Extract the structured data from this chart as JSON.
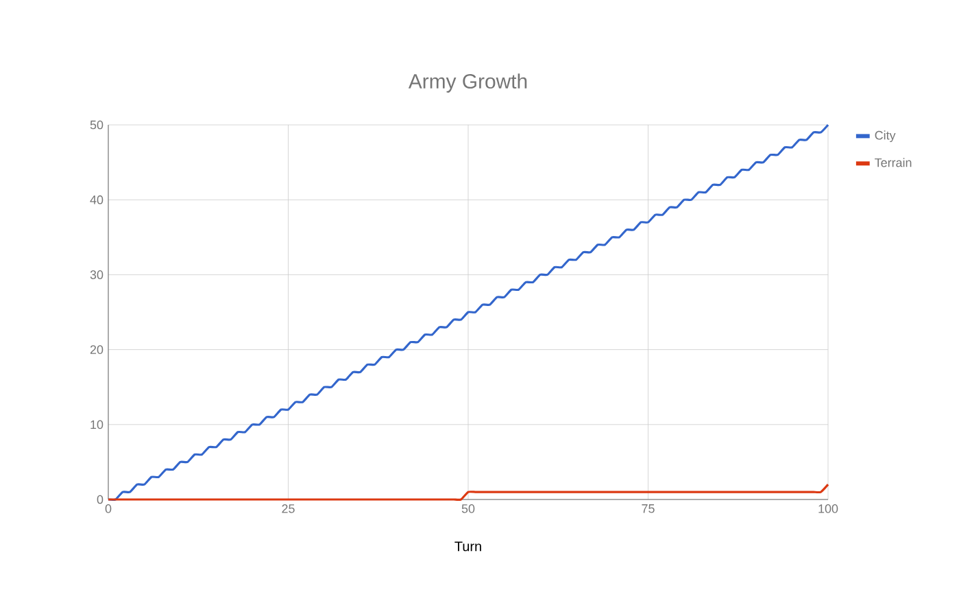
{
  "chart_data": {
    "type": "line",
    "title": "Army Growth",
    "xlabel": "Turn",
    "x": [
      0,
      1,
      2,
      3,
      4,
      5,
      6,
      7,
      8,
      9,
      10,
      11,
      12,
      13,
      14,
      15,
      16,
      17,
      18,
      19,
      20,
      21,
      22,
      23,
      24,
      25,
      26,
      27,
      28,
      29,
      30,
      31,
      32,
      33,
      34,
      35,
      36,
      37,
      38,
      39,
      40,
      41,
      42,
      43,
      44,
      45,
      46,
      47,
      48,
      49,
      50,
      51,
      52,
      53,
      54,
      55,
      56,
      57,
      58,
      59,
      60,
      61,
      62,
      63,
      64,
      65,
      66,
      67,
      68,
      69,
      70,
      71,
      72,
      73,
      74,
      75,
      76,
      77,
      78,
      79,
      80,
      81,
      82,
      83,
      84,
      85,
      86,
      87,
      88,
      89,
      90,
      91,
      92,
      93,
      94,
      95,
      96,
      97,
      98,
      99,
      100
    ],
    "series": [
      {
        "name": "City",
        "color": "#3366cc",
        "values": [
          0,
          0,
          1,
          1,
          2,
          2,
          3,
          3,
          4,
          4,
          5,
          5,
          6,
          6,
          7,
          7,
          8,
          8,
          9,
          9,
          10,
          10,
          11,
          11,
          12,
          12,
          13,
          13,
          14,
          14,
          15,
          15,
          16,
          16,
          17,
          17,
          18,
          18,
          19,
          19,
          20,
          20,
          21,
          21,
          22,
          22,
          23,
          23,
          24,
          24,
          25,
          25,
          26,
          26,
          27,
          27,
          28,
          28,
          29,
          29,
          30,
          30,
          31,
          31,
          32,
          32,
          33,
          33,
          34,
          34,
          35,
          35,
          36,
          36,
          37,
          37,
          38,
          38,
          39,
          39,
          40,
          40,
          41,
          41,
          42,
          42,
          43,
          43,
          44,
          44,
          45,
          45,
          46,
          46,
          47,
          47,
          48,
          48,
          49,
          49,
          50
        ]
      },
      {
        "name": "Terrain",
        "color": "#dc3912",
        "values": [
          0,
          0,
          0,
          0,
          0,
          0,
          0,
          0,
          0,
          0,
          0,
          0,
          0,
          0,
          0,
          0,
          0,
          0,
          0,
          0,
          0,
          0,
          0,
          0,
          0,
          0,
          0,
          0,
          0,
          0,
          0,
          0,
          0,
          0,
          0,
          0,
          0,
          0,
          0,
          0,
          0,
          0,
          0,
          0,
          0,
          0,
          0,
          0,
          0,
          0,
          1,
          1,
          1,
          1,
          1,
          1,
          1,
          1,
          1,
          1,
          1,
          1,
          1,
          1,
          1,
          1,
          1,
          1,
          1,
          1,
          1,
          1,
          1,
          1,
          1,
          1,
          1,
          1,
          1,
          1,
          1,
          1,
          1,
          1,
          1,
          1,
          1,
          1,
          1,
          1,
          1,
          1,
          1,
          1,
          1,
          1,
          1,
          1,
          1,
          1,
          2
        ]
      }
    ],
    "xlim": [
      0,
      100
    ],
    "xticks": [
      0,
      25,
      50,
      75,
      100
    ],
    "ylim": [
      0,
      50
    ],
    "yticks": [
      0,
      10,
      20,
      30,
      40,
      50
    ],
    "grid": true,
    "legend": "right",
    "marker": "none",
    "line_style": "solid"
  }
}
